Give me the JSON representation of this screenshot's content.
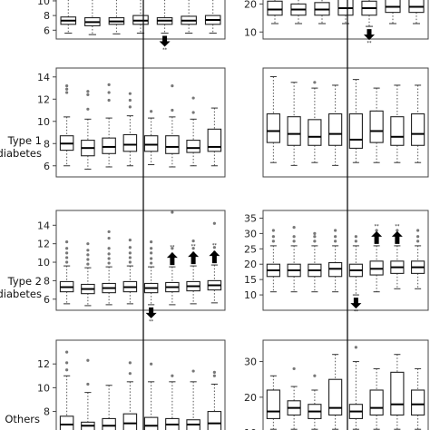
{
  "chart_data": [
    {
      "type": "box",
      "row_label": "",
      "yticks": [
        6,
        8,
        10
      ],
      "ylim": [
        4.8,
        11.6
      ],
      "boxes": [
        {
          "wl": 5.6,
          "q1": 6.8,
          "med": 7.3,
          "q3": 7.8,
          "wh": 10.6,
          "out": []
        },
        {
          "wl": 5.4,
          "q1": 6.6,
          "med": 7.1,
          "q3": 7.7,
          "wh": 10.6,
          "out": []
        },
        {
          "wl": 5.5,
          "q1": 6.8,
          "med": 7.2,
          "q3": 7.7,
          "wh": 10.6,
          "out": []
        },
        {
          "wl": 5.6,
          "q1": 6.8,
          "med": 7.3,
          "q3": 8.0,
          "wh": 10.6,
          "out": []
        },
        {
          "wl": 5.6,
          "q1": 6.8,
          "med": 7.3,
          "q3": 7.7,
          "wh": 10.6,
          "out": []
        },
        {
          "wl": 5.6,
          "q1": 6.8,
          "med": 7.3,
          "q3": 7.9,
          "wh": 10.6,
          "out": []
        },
        {
          "wl": 5.6,
          "q1": 6.8,
          "med": 7.4,
          "q3": 8.0,
          "wh": 10.6,
          "out": []
        }
      ],
      "arrows": [
        {
          "box": 5,
          "dir": "down"
        },
        {
          "box": 6,
          "dir": "up"
        },
        {
          "box": 7,
          "dir": "up"
        }
      ],
      "sig_marks": [
        {
          "box": 5,
          "text": "**"
        }
      ]
    },
    {
      "type": "box",
      "row_label": "",
      "yticks": [
        10,
        20
      ],
      "ylim": [
        7.5,
        25.3
      ],
      "boxes": [
        {
          "wl": 13.0,
          "q1": 16.0,
          "med": 18.0,
          "q3": 21.0,
          "wh": 26.0,
          "out": []
        },
        {
          "wl": 13.0,
          "q1": 16.0,
          "med": 18.0,
          "q3": 20.0,
          "wh": 26.0,
          "out": []
        },
        {
          "wl": 13.0,
          "q1": 16.0,
          "med": 18.0,
          "q3": 20.5,
          "wh": 26.0,
          "out": []
        },
        {
          "wl": 13.0,
          "q1": 16.0,
          "med": 18.5,
          "q3": 22.0,
          "wh": 26.0,
          "out": []
        },
        {
          "wl": 12.0,
          "q1": 16.0,
          "med": 18.5,
          "q3": 21.0,
          "wh": 26.0,
          "out": [
            9.5
          ]
        },
        {
          "wl": 13.0,
          "q1": 17.0,
          "med": 19.0,
          "q3": 22.0,
          "wh": 26.0,
          "out": []
        },
        {
          "wl": 13.0,
          "q1": 17.0,
          "med": 19.0,
          "q3": 22.0,
          "wh": 26.0,
          "out": []
        }
      ],
      "arrows": [
        {
          "box": 5,
          "dir": "down"
        }
      ],
      "sig_marks": [
        {
          "box": 5,
          "text": "**"
        }
      ]
    },
    {
      "type": "box",
      "row_label": "Type 1 diabetes",
      "yticks": [
        6,
        8,
        10,
        12,
        14
      ],
      "ylim": [
        5.0,
        14.8
      ],
      "boxes": [
        {
          "wl": 6.0,
          "q1": 7.4,
          "med": 8.0,
          "q3": 8.7,
          "wh": 10.4,
          "out": [
            12.6,
            12.9,
            13.2
          ]
        },
        {
          "wl": 5.7,
          "q1": 6.9,
          "med": 7.6,
          "q3": 8.3,
          "wh": 10.2,
          "out": [
            11.1,
            12.4,
            12.7
          ]
        },
        {
          "wl": 5.9,
          "q1": 7.1,
          "med": 7.7,
          "q3": 8.5,
          "wh": 10.3,
          "out": [
            11.9,
            12.6,
            13.3
          ]
        },
        {
          "wl": 6.0,
          "q1": 7.3,
          "med": 7.9,
          "q3": 8.8,
          "wh": 10.5,
          "out": [
            11.3,
            11.9,
            12.5
          ]
        },
        {
          "wl": 6.1,
          "q1": 7.3,
          "med": 7.9,
          "q3": 8.7,
          "wh": 10.3,
          "out": [
            10.9
          ]
        },
        {
          "wl": 5.9,
          "q1": 7.1,
          "med": 7.7,
          "q3": 8.7,
          "wh": 10.4,
          "out": [
            11.0,
            13.2
          ]
        },
        {
          "wl": 6.0,
          "q1": 7.2,
          "med": 7.6,
          "q3": 8.3,
          "wh": 10.2,
          "out": [
            10.8,
            12.1
          ]
        },
        {
          "wl": 6.0,
          "q1": 7.3,
          "med": 7.7,
          "q3": 9.3,
          "wh": 11.2,
          "out": []
        }
      ],
      "arrows": [],
      "sig_marks": []
    },
    {
      "type": "box",
      "row_label": "",
      "yticks": [],
      "ylim": [
        10.0,
        48.0
      ],
      "boxes": [
        {
          "wl": 15.0,
          "q1": 22.0,
          "med": 26.0,
          "q3": 32.0,
          "wh": 45.0,
          "out": []
        },
        {
          "wl": 14.0,
          "q1": 21.0,
          "med": 25.0,
          "q3": 31.0,
          "wh": 43.0,
          "out": []
        },
        {
          "wl": 15.0,
          "q1": 21.0,
          "med": 24.0,
          "q3": 30.0,
          "wh": 41.0,
          "out": [
            43.0
          ]
        },
        {
          "wl": 14.0,
          "q1": 21.0,
          "med": 25.0,
          "q3": 32.0,
          "wh": 42.0,
          "out": []
        },
        {
          "wl": 15.0,
          "q1": 20.0,
          "med": 23.0,
          "q3": 32.0,
          "wh": 44.0,
          "out": []
        },
        {
          "wl": 15.0,
          "q1": 22.0,
          "med": 26.0,
          "q3": 33.0,
          "wh": 41.0,
          "out": []
        },
        {
          "wl": 15.0,
          "q1": 21.0,
          "med": 24.0,
          "q3": 31.0,
          "wh": 42.0,
          "out": []
        },
        {
          "wl": 15.0,
          "q1": 21.0,
          "med": 25.0,
          "q3": 32.0,
          "wh": 42.0,
          "out": []
        }
      ],
      "arrows": [],
      "sig_marks": []
    },
    {
      "type": "box",
      "row_label": "Type 2 diabetes",
      "yticks": [
        6,
        8,
        10,
        12,
        14
      ],
      "ylim": [
        4.8,
        15.6
      ],
      "boxes": [
        {
          "wl": 5.5,
          "q1": 6.8,
          "med": 7.3,
          "q3": 7.9,
          "wh": 9.6,
          "out": [
            10.0,
            10.5,
            11.0,
            11.5,
            12.2
          ]
        },
        {
          "wl": 5.3,
          "q1": 6.6,
          "med": 7.1,
          "q3": 7.6,
          "wh": 9.4,
          "out": [
            9.8,
            10.3,
            10.8,
            11.3,
            12.0
          ]
        },
        {
          "wl": 5.4,
          "q1": 6.7,
          "med": 7.2,
          "q3": 7.7,
          "wh": 9.5,
          "out": [
            9.9,
            10.4,
            10.9,
            11.5,
            12.6,
            13.3
          ]
        },
        {
          "wl": 5.5,
          "q1": 6.8,
          "med": 7.3,
          "q3": 7.9,
          "wh": 9.6,
          "out": [
            10.0,
            10.5,
            11.0,
            11.6,
            12.4
          ]
        },
        {
          "wl": 5.4,
          "q1": 6.7,
          "med": 7.2,
          "q3": 7.7,
          "wh": 9.5,
          "out": [
            9.9,
            10.4,
            11.0,
            11.5,
            12.2
          ]
        },
        {
          "wl": 5.4,
          "q1": 6.8,
          "med": 7.3,
          "q3": 7.8,
          "wh": 9.5,
          "out": [
            9.9,
            10.4,
            10.9,
            11.5,
            15.4
          ]
        },
        {
          "wl": 5.5,
          "q1": 6.9,
          "med": 7.4,
          "q3": 7.9,
          "wh": 9.6,
          "out": [
            10.0,
            10.5,
            11.0,
            11.5,
            12.3
          ]
        },
        {
          "wl": 5.6,
          "q1": 7.0,
          "med": 7.5,
          "q3": 8.0,
          "wh": 9.7,
          "out": [
            10.1,
            10.6,
            11.1,
            11.6,
            14.2
          ]
        }
      ],
      "arrows": [
        {
          "box": 5,
          "dir": "down"
        },
        {
          "box": 6,
          "dir": "up"
        },
        {
          "box": 7,
          "dir": "up"
        },
        {
          "box": 8,
          "dir": "up"
        }
      ],
      "sig_marks": [
        {
          "box": 5,
          "text": "**"
        },
        {
          "box": 6,
          "text": "**"
        },
        {
          "box": 7,
          "text": "**"
        },
        {
          "box": 8,
          "text": "**"
        }
      ]
    },
    {
      "type": "box",
      "row_label": "",
      "yticks": [
        10,
        15,
        20,
        25,
        30,
        35
      ],
      "ylim": [
        5.0,
        37.5
      ],
      "boxes": [
        {
          "wl": 11.0,
          "q1": 16.0,
          "med": 18.0,
          "q3": 20.0,
          "wh": 26.0,
          "out": [
            27.5,
            29.0,
            31.0
          ]
        },
        {
          "wl": 11.0,
          "q1": 16.0,
          "med": 18.0,
          "q3": 20.0,
          "wh": 26.0,
          "out": [
            27.5,
            29.0,
            32.0
          ]
        },
        {
          "wl": 11.0,
          "q1": 16.0,
          "med": 18.0,
          "q3": 20.0,
          "wh": 26.0,
          "out": [
            27.5,
            29.0,
            30.0
          ]
        },
        {
          "wl": 11.0,
          "q1": 16.0,
          "med": 18.5,
          "q3": 20.5,
          "wh": 26.0,
          "out": [
            27.5,
            29.0,
            31.0
          ]
        },
        {
          "wl": 10.0,
          "q1": 16.0,
          "med": 18.0,
          "q3": 20.0,
          "wh": 26.0,
          "out": [
            27.5,
            29.0,
            7.0
          ]
        },
        {
          "wl": 11.0,
          "q1": 16.5,
          "med": 18.5,
          "q3": 21.0,
          "wh": 26.0,
          "out": [
            27.5,
            29.0,
            31.0
          ]
        },
        {
          "wl": 12.0,
          "q1": 17.0,
          "med": 19.0,
          "q3": 21.0,
          "wh": 26.0,
          "out": [
            27.5,
            29.0,
            31.0
          ]
        },
        {
          "wl": 12.0,
          "q1": 17.0,
          "med": 19.0,
          "q3": 21.0,
          "wh": 26.0,
          "out": [
            27.5,
            29.0,
            31.0
          ]
        }
      ],
      "arrows": [
        {
          "box": 5,
          "dir": "down"
        },
        {
          "box": 6,
          "dir": "up"
        },
        {
          "box": 7,
          "dir": "up"
        }
      ],
      "sig_marks": [
        {
          "box": 5,
          "text": "**"
        },
        {
          "box": 6,
          "text": "**"
        },
        {
          "box": 7,
          "text": "**"
        }
      ]
    },
    {
      "type": "box",
      "row_label": "Others",
      "yticks": [
        6,
        8,
        10,
        12
      ],
      "ylim": [
        5.6,
        14.0
      ],
      "boxes": [
        {
          "wl": 5.6,
          "q1": 6.3,
          "med": 6.9,
          "q3": 7.6,
          "wh": 11.0,
          "out": [
            11.5,
            12.1,
            13.0
          ]
        },
        {
          "wl": 5.6,
          "q1": 6.2,
          "med": 6.8,
          "q3": 7.1,
          "wh": 9.6,
          "out": [
            10.3,
            12.3
          ]
        },
        {
          "wl": 5.6,
          "q1": 6.2,
          "med": 6.8,
          "q3": 7.4,
          "wh": 10.2,
          "out": []
        },
        {
          "wl": 5.6,
          "q1": 6.3,
          "med": 7.0,
          "q3": 7.8,
          "wh": 10.5,
          "out": [
            11.2,
            12.1
          ]
        },
        {
          "wl": 5.6,
          "q1": 6.3,
          "med": 6.8,
          "q3": 7.5,
          "wh": 10.5,
          "out": [
            12.0
          ]
        },
        {
          "wl": 5.6,
          "q1": 6.2,
          "med": 6.9,
          "q3": 7.4,
          "wh": 10.5,
          "out": [
            11.0
          ]
        },
        {
          "wl": 5.6,
          "q1": 6.2,
          "med": 6.9,
          "q3": 7.3,
          "wh": 10.5,
          "out": [
            11.4
          ]
        },
        {
          "wl": 5.6,
          "q1": 6.3,
          "med": 7.0,
          "q3": 8.0,
          "wh": 10.3,
          "out": [
            11.0,
            11.3
          ]
        }
      ],
      "arrows": [],
      "sig_marks": []
    },
    {
      "type": "box",
      "row_label": "",
      "yticks": [
        10,
        20,
        30
      ],
      "ylim": [
        8.0,
        36.0
      ],
      "boxes": [
        {
          "wl": 11.0,
          "q1": 14.0,
          "med": 16.0,
          "q3": 22.0,
          "wh": 26.0,
          "out": []
        },
        {
          "wl": 11.0,
          "q1": 15.0,
          "med": 17.0,
          "q3": 19.0,
          "wh": 23.0,
          "out": [
            28.0
          ]
        },
        {
          "wl": 11.0,
          "q1": 14.0,
          "med": 16.0,
          "q3": 18.0,
          "wh": 22.0,
          "out": [
            26.0
          ]
        },
        {
          "wl": 11.0,
          "q1": 15.0,
          "med": 17.0,
          "q3": 25.0,
          "wh": 32.0,
          "out": []
        },
        {
          "wl": 11.0,
          "q1": 14.0,
          "med": 16.0,
          "q3": 18.0,
          "wh": 30.0,
          "out": [
            34.0
          ]
        },
        {
          "wl": 11.0,
          "q1": 15.0,
          "med": 17.0,
          "q3": 22.0,
          "wh": 28.0,
          "out": []
        },
        {
          "wl": 11.0,
          "q1": 15.0,
          "med": 18.0,
          "q3": 27.0,
          "wh": 32.0,
          "out": []
        },
        {
          "wl": 11.0,
          "q1": 15.0,
          "med": 18.0,
          "q3": 22.0,
          "wh": 28.0,
          "out": []
        }
      ],
      "arrows": [],
      "sig_marks": []
    }
  ]
}
